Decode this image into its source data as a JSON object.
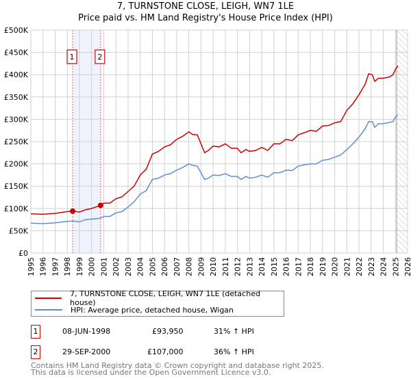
{
  "title": "7, TURNSTONE CLOSE, LEIGH, WN7 1LE",
  "subtitle": "Price paid vs. HM Land Registry's House Price Index (HPI)",
  "chart_data": {
    "type": "line",
    "title": "7, TURNSTONE CLOSE, LEIGH, WN7 1LE",
    "subtitle": "Price paid vs. HM Land Registry's House Price Index (HPI)",
    "xlim": [
      1995,
      2026
    ],
    "ylim": [
      0,
      500000
    ],
    "grid": true,
    "x_ticks": [
      "1995",
      "1996",
      "1997",
      "1998",
      "1999",
      "2000",
      "2001",
      "2002",
      "2003",
      "2004",
      "2005",
      "2006",
      "2007",
      "2008",
      "2009",
      "2010",
      "2011",
      "2012",
      "2013",
      "2014",
      "2015",
      "2016",
      "2017",
      "2018",
      "2019",
      "2020",
      "2021",
      "2022",
      "2023",
      "2024",
      "2025",
      "2026"
    ],
    "y_ticks": [
      {
        "v": 0,
        "label": "£0"
      },
      {
        "v": 50000,
        "label": "£50K"
      },
      {
        "v": 100000,
        "label": "£100K"
      },
      {
        "v": 150000,
        "label": "£150K"
      },
      {
        "v": 200000,
        "label": "£200K"
      },
      {
        "v": 250000,
        "label": "£250K"
      },
      {
        "v": 300000,
        "label": "£300K"
      },
      {
        "v": 350000,
        "label": "£350K"
      },
      {
        "v": 400000,
        "label": "£400K"
      },
      {
        "v": 450000,
        "label": "£450K"
      },
      {
        "v": 500000,
        "label": "£500K"
      }
    ],
    "shaded_range": [
      1998.44,
      2000.74
    ],
    "forecast_hatch_from": 2025.1,
    "series": [
      {
        "name": "7, TURNSTONE CLOSE, LEIGH, WN7 1LE (detached house)",
        "color": "#cc0000",
        "x": [
          1995,
          1996,
          1997,
          1998,
          1998.44,
          1999,
          1999.5,
          2000,
          2000.74,
          2001,
          2001.5,
          2002,
          2002.5,
          2003,
          2003.5,
          2004,
          2004.5,
          2005,
          2005.5,
          2006,
          2006.5,
          2007,
          2007.5,
          2008,
          2008.3,
          2008.7,
          2009,
          2009.3,
          2009.6,
          2010,
          2010.5,
          2011,
          2011.5,
          2012,
          2012.3,
          2012.7,
          2013,
          2013.5,
          2014,
          2014.5,
          2015,
          2015.5,
          2016,
          2016.5,
          2017,
          2017.5,
          2018,
          2018.5,
          2019,
          2019.5,
          2020,
          2020.5,
          2021,
          2021.5,
          2022,
          2022.5,
          2022.8,
          2023.1,
          2023.3,
          2023.6,
          2024,
          2024.5,
          2024.8,
          2025,
          2025.2
        ],
        "y": [
          88000,
          87000,
          89000,
          93000,
          93950,
          92000,
          97000,
          100000,
          107000,
          112000,
          112000,
          122000,
          126000,
          138000,
          150000,
          175000,
          188000,
          222000,
          228000,
          238000,
          243000,
          255000,
          262000,
          272000,
          266000,
          265000,
          245000,
          225000,
          230000,
          240000,
          238000,
          245000,
          235000,
          235000,
          225000,
          232000,
          228000,
          230000,
          237000,
          230000,
          245000,
          245000,
          255000,
          252000,
          265000,
          270000,
          275000,
          273000,
          285000,
          286000,
          292000,
          295000,
          320000,
          335000,
          355000,
          378000,
          402000,
          400000,
          385000,
          392000,
          392000,
          395000,
          400000,
          412000,
          420000
        ]
      },
      {
        "name": "HPI: Average price, detached house, Wigan",
        "color": "#5b8fd4",
        "x": [
          1995,
          1996,
          1997,
          1998,
          1998.5,
          1999,
          1999.5,
          2000,
          2000.74,
          2001,
          2001.5,
          2002,
          2002.5,
          2003,
          2003.5,
          2004,
          2004.5,
          2005,
          2005.5,
          2006,
          2006.5,
          2007,
          2007.5,
          2008,
          2008.3,
          2008.7,
          2009,
          2009.3,
          2009.6,
          2010,
          2010.5,
          2011,
          2011.5,
          2012,
          2012.3,
          2012.7,
          2013,
          2013.5,
          2014,
          2014.5,
          2015,
          2015.5,
          2016,
          2016.5,
          2017,
          2017.5,
          2018,
          2018.5,
          2019,
          2019.5,
          2020,
          2020.5,
          2021,
          2021.5,
          2022,
          2022.5,
          2022.8,
          2023.1,
          2023.3,
          2023.6,
          2024,
          2024.5,
          2024.8,
          2025,
          2025.2
        ],
        "y": [
          67000,
          66000,
          68000,
          71000,
          72000,
          70000,
          75000,
          76000,
          78000,
          82000,
          82000,
          90000,
          93000,
          103000,
          115000,
          132000,
          140000,
          165000,
          168000,
          175000,
          178000,
          186000,
          192000,
          200000,
          197000,
          195000,
          180000,
          165000,
          168000,
          175000,
          174000,
          178000,
          172000,
          172000,
          165000,
          172000,
          168000,
          170000,
          175000,
          170000,
          180000,
          180000,
          186000,
          185000,
          195000,
          198000,
          200000,
          200000,
          208000,
          210000,
          215000,
          220000,
          232000,
          245000,
          260000,
          278000,
          295000,
          295000,
          282000,
          290000,
          290000,
          293000,
          295000,
          305000,
          310000
        ]
      }
    ],
    "annotations": [
      {
        "label": "1",
        "x": 1998.44,
        "y": 93950
      },
      {
        "label": "2",
        "x": 2000.74,
        "y": 107000
      }
    ]
  },
  "legend": {
    "items": [
      {
        "label": "7, TURNSTONE CLOSE, LEIGH, WN7 1LE (detached house)",
        "color": "#cc0000"
      },
      {
        "label": "HPI: Average price, detached house, Wigan",
        "color": "#5b8fd4"
      }
    ]
  },
  "sales": [
    {
      "num": "1",
      "date": "08-JUN-1998",
      "price": "£93,950",
      "hpi": "31% ↑ HPI"
    },
    {
      "num": "2",
      "date": "29-SEP-2000",
      "price": "£107,000",
      "hpi": "36% ↑ HPI"
    }
  ],
  "footer": {
    "line1": "Contains HM Land Registry data © Crown copyright and database right 2025.",
    "line2": "This data is licensed under the Open Government Licence v3.0."
  }
}
